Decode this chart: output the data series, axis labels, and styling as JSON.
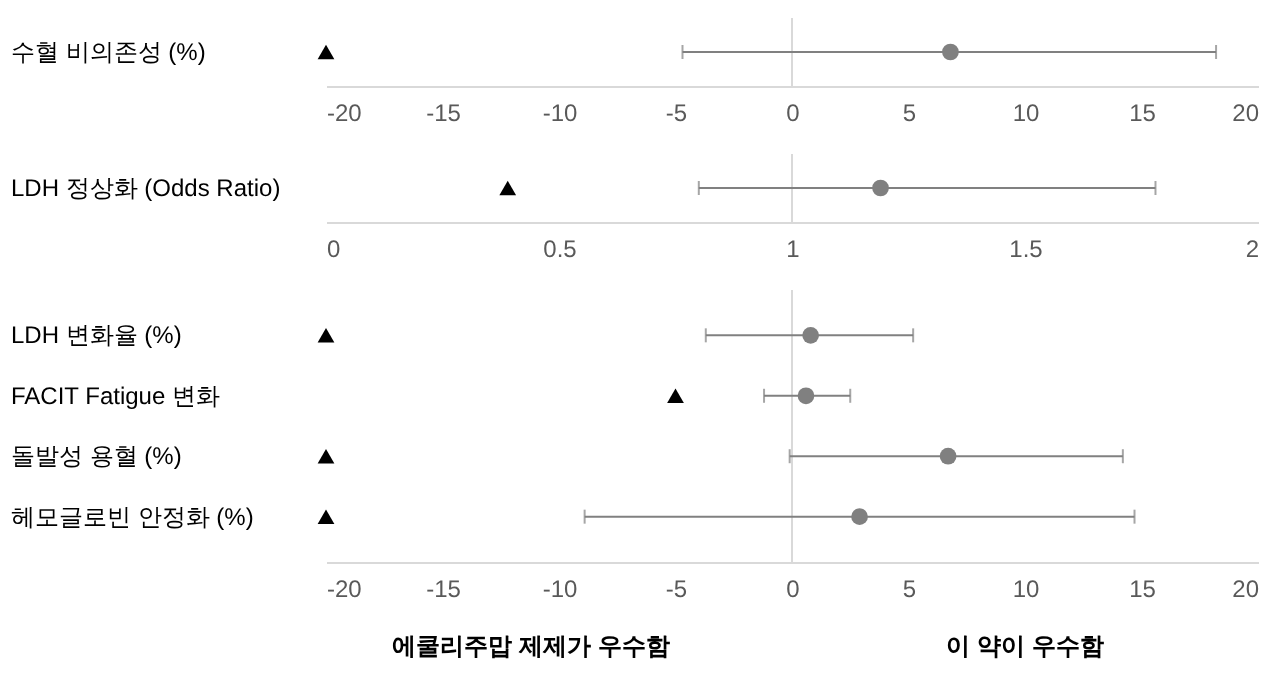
{
  "chart_data": [
    {
      "type": "scatter",
      "orientation": "horizontal",
      "categories": [
        "수혈 비의존성 (%)"
      ],
      "xlim": [
        -20,
        20
      ],
      "xticks": [
        -20,
        -15,
        -10,
        -5,
        0,
        5,
        10,
        15,
        20
      ],
      "grid": false,
      "ref_lines": [
        {
          "axis": "x",
          "value": 0,
          "color": "#d9d9d9"
        }
      ],
      "series": [
        {
          "color": "#808080",
          "marker": "circle",
          "values": [
            6.8
          ],
          "errors": [
            [
              -4.7,
              18.2
            ]
          ]
        },
        {
          "color": "#000000",
          "marker": "triangle",
          "values": [
            -20
          ]
        }
      ]
    },
    {
      "type": "scatter",
      "orientation": "horizontal",
      "categories": [
        "LDH 정상화 (Odds Ratio)"
      ],
      "xlim": [
        0,
        2
      ],
      "xticks": [
        0,
        0.5,
        1,
        1.5,
        2
      ],
      "grid": false,
      "ref_lines": [
        {
          "axis": "x",
          "value": 1,
          "color": "#d9d9d9"
        }
      ],
      "series": [
        {
          "color": "#808080",
          "marker": "circle",
          "values": [
            1.19
          ],
          "errors": [
            [
              0.8,
              1.78
            ]
          ]
        },
        {
          "color": "#000000",
          "marker": "triangle",
          "values": [
            0.39
          ]
        }
      ]
    },
    {
      "type": "scatter",
      "orientation": "horizontal",
      "categories": [
        "LDH 변화율 (%)",
        "FACIT Fatigue 변화",
        "돌발성 용혈 (%)",
        "헤모글로빈 안정화 (%)"
      ],
      "xlim": [
        -20,
        20
      ],
      "xticks": [
        -20,
        -15,
        -10,
        -5,
        0,
        5,
        10,
        15,
        20
      ],
      "grid": false,
      "ref_lines": [
        {
          "axis": "x",
          "value": 0,
          "color": "#d9d9d9"
        }
      ],
      "annotations": [
        "에쿨리주맙 제제가 우수함",
        "이 약이 우수함"
      ],
      "series": [
        {
          "color": "#808080",
          "marker": "circle",
          "values": [
            0.8,
            0.6,
            6.7,
            2.9
          ],
          "errors": [
            [
              -3.7,
              5.2
            ],
            [
              -1.2,
              2.5
            ],
            [
              -0.1,
              14.2
            ],
            [
              -8.9,
              14.7
            ]
          ]
        },
        {
          "color": "#000000",
          "marker": "triangle",
          "values": [
            -20,
            -5,
            -20,
            -20
          ]
        }
      ]
    }
  ]
}
